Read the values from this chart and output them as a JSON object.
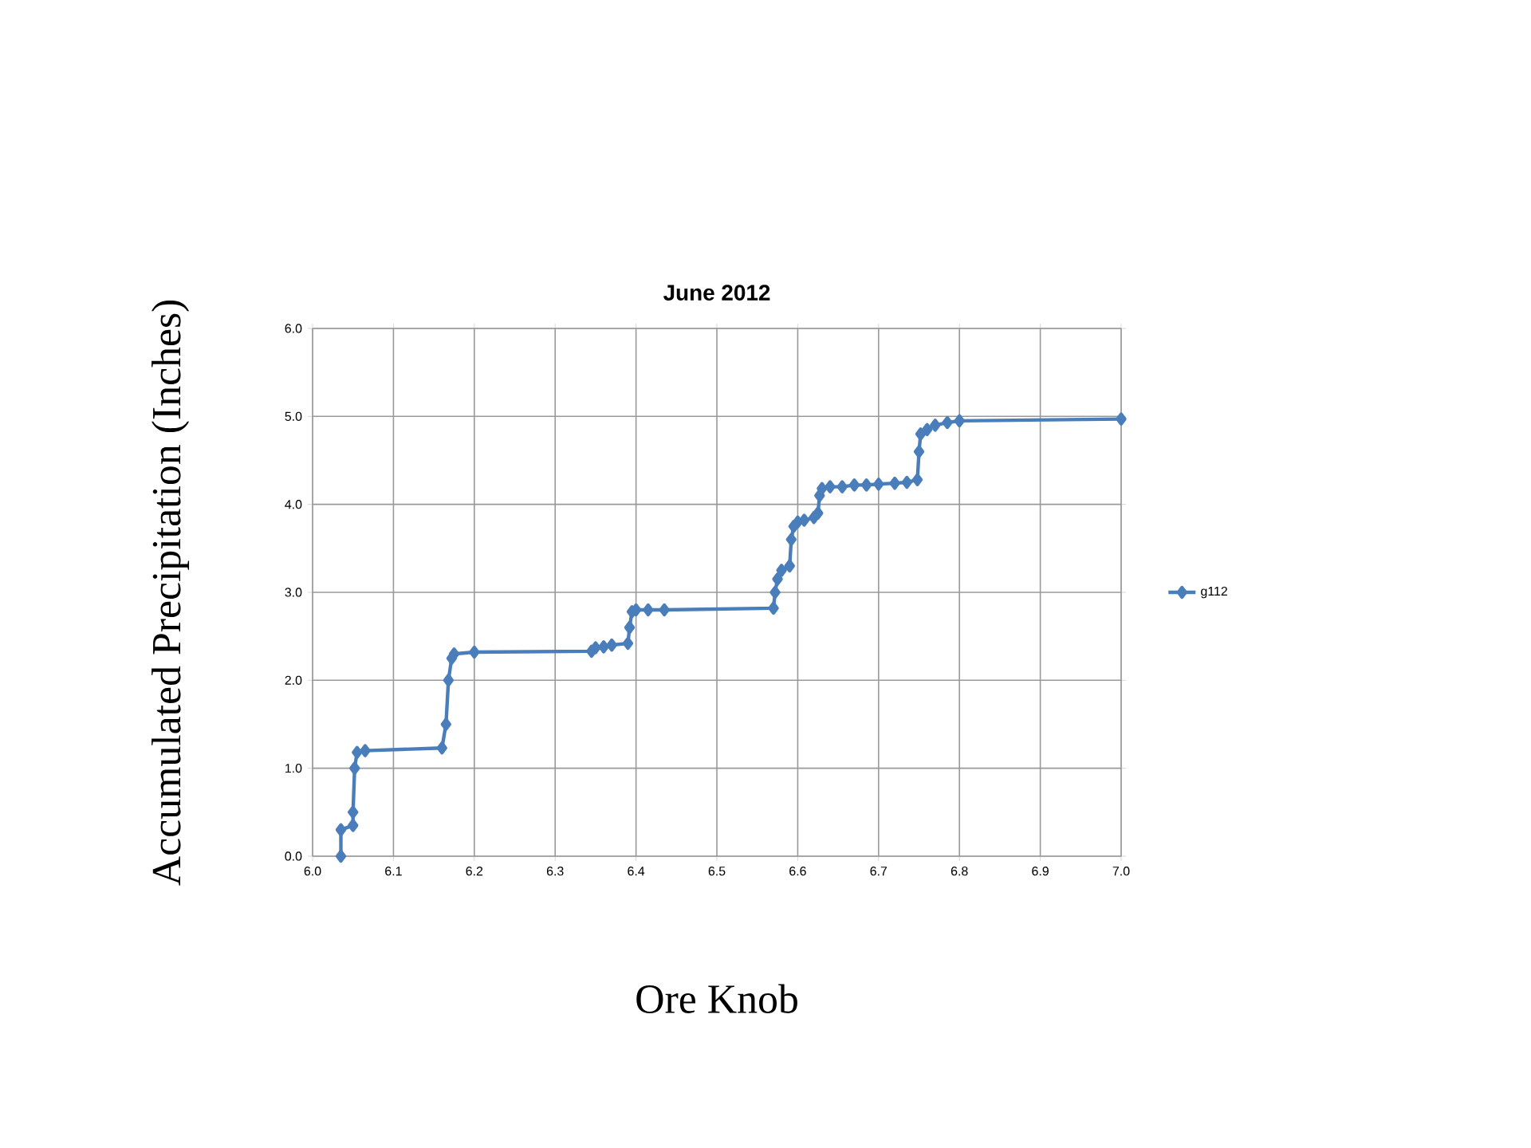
{
  "chart_data": {
    "type": "line",
    "title": "June 2012",
    "xlabel": "Ore Knob",
    "ylabel": "Accumulated  Precipitation (Inches)",
    "x": [
      6.035,
      6.035,
      6.05,
      6.05,
      6.052,
      6.055,
      6.065,
      6.16,
      6.165,
      6.168,
      6.172,
      6.175,
      6.2,
      6.345,
      6.35,
      6.36,
      6.37,
      6.39,
      6.392,
      6.395,
      6.4,
      6.415,
      6.435,
      6.57,
      6.572,
      6.575,
      6.58,
      6.59,
      6.592,
      6.595,
      6.6,
      6.608,
      6.62,
      6.625,
      6.627,
      6.63,
      6.64,
      6.655,
      6.67,
      6.685,
      6.7,
      6.72,
      6.735,
      6.748,
      6.75,
      6.752,
      6.76,
      6.77,
      6.785,
      6.8,
      7.0
    ],
    "series": [
      {
        "name": "g112",
        "color": "#4a7ebb",
        "values": [
          0.0,
          0.3,
          0.35,
          0.5,
          1.0,
          1.18,
          1.2,
          1.23,
          1.5,
          2.0,
          2.25,
          2.3,
          2.32,
          2.33,
          2.37,
          2.38,
          2.4,
          2.42,
          2.6,
          2.78,
          2.8,
          2.8,
          2.8,
          2.82,
          3.0,
          3.15,
          3.25,
          3.3,
          3.6,
          3.75,
          3.8,
          3.82,
          3.85,
          3.9,
          4.1,
          4.18,
          4.2,
          4.2,
          4.22,
          4.22,
          4.23,
          4.24,
          4.25,
          4.28,
          4.6,
          4.8,
          4.85,
          4.9,
          4.93,
          4.95,
          4.97
        ]
      }
    ],
    "xlim": [
      6.0,
      7.0
    ],
    "ylim": [
      0.0,
      6.0
    ],
    "xticks": [
      {
        "value": 6.0,
        "label": "6.0"
      },
      {
        "value": 6.1,
        "label": "6.1"
      },
      {
        "value": 6.2,
        "label": "6.2"
      },
      {
        "value": 6.3,
        "label": "6.3"
      },
      {
        "value": 6.4,
        "label": "6.4"
      },
      {
        "value": 6.5,
        "label": "6.5"
      },
      {
        "value": 6.6,
        "label": "6.6"
      },
      {
        "value": 6.7,
        "label": "6.7"
      },
      {
        "value": 6.8,
        "label": "6.8"
      },
      {
        "value": 6.9,
        "label": "6.9"
      },
      {
        "value": 7.0,
        "label": "7.0"
      }
    ],
    "yticks": [
      {
        "value": 0.0,
        "label": "0.0"
      },
      {
        "value": 1.0,
        "label": "1.0"
      },
      {
        "value": 2.0,
        "label": "2.0"
      },
      {
        "value": 3.0,
        "label": "3.0"
      },
      {
        "value": 4.0,
        "label": "4.0"
      },
      {
        "value": 5.0,
        "label": "5.0"
      },
      {
        "value": 6.0,
        "label": "6.0"
      }
    ],
    "grid": true,
    "legend": "right",
    "marker": "diamond",
    "line_style": "solid"
  }
}
